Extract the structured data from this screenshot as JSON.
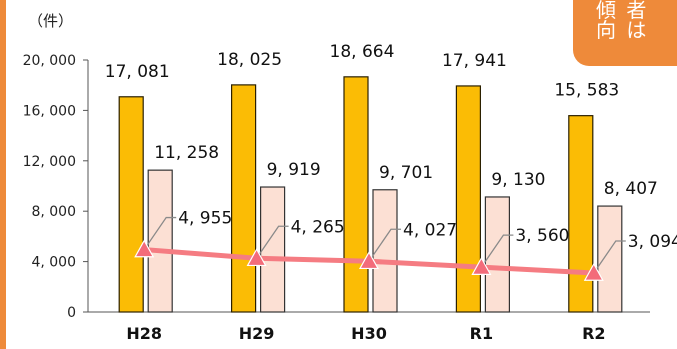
{
  "unit_label": "（件）",
  "corner_text": "傾 者\n向 は",
  "colors": {
    "bar_total": "#fbbc05",
    "bar_total_stroke": "#2b2000",
    "bar_second": "#fce0d4",
    "bar_second_stroke": "#333333",
    "line": "#f57c82",
    "marker": "#f36c7a",
    "leader": "#8a8a8a",
    "accent": "#ee8a3a"
  },
  "chart_data": {
    "type": "bar",
    "categories": [
      "H28",
      "H29",
      "H30",
      "R1",
      "R2"
    ],
    "ylim": [
      0,
      20000
    ],
    "y_ticks": [
      0,
      4000,
      8000,
      12000,
      16000,
      20000
    ],
    "y_tick_labels": [
      "0",
      "4, 000",
      "8, 000",
      "12, 000",
      "16, 000",
      "20, 000"
    ],
    "series": [
      {
        "type": "bar",
        "values": [
          17081,
          18025,
          18664,
          17941,
          15583
        ],
        "labels": [
          "17, 081",
          "18, 025",
          "18, 664",
          "17, 941",
          "15, 583"
        ]
      },
      {
        "type": "bar",
        "values": [
          11258,
          9919,
          9701,
          9130,
          8407
        ],
        "labels": [
          "11, 258",
          "9, 919",
          "9, 701",
          "9, 130",
          "8, 407"
        ]
      },
      {
        "type": "line",
        "values": [
          4955,
          4265,
          4027,
          3560,
          3094
        ],
        "labels": [
          "4, 955",
          "4, 265",
          "4, 027",
          "3, 560",
          "3, 094"
        ]
      }
    ]
  }
}
